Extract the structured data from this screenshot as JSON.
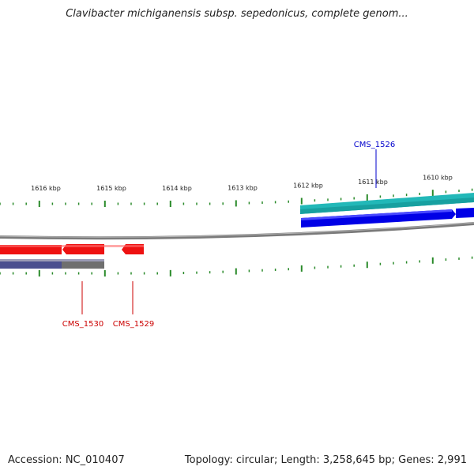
{
  "title": "Clavibacter michiganensis subsp. sepedonicus, complete genom...",
  "footer": {
    "accession": "Accession: NC_010407",
    "summary": "Topology: circular; Length: 3,258,645 bp; Genes: 2,991"
  },
  "colors": {
    "forward_cds": "#0000e6",
    "forward_gene": "#22b8b8",
    "reverse_cds": "#ee1111",
    "reverse_gene_strip": "#5b5f7e",
    "backbone": "#808080",
    "ticks": "#2a8a2a",
    "label_forward": "#0000cc",
    "label_reverse": "#cc0000"
  },
  "scale": {
    "labels": [
      "1616 kbp",
      "1615 kbp",
      "1614 kbp",
      "1613 kbp",
      "1612 kbp",
      "1611 kbp",
      "1610 kbp"
    ]
  },
  "genes": [
    {
      "name": "CMS_1526",
      "strand": "forward"
    },
    {
      "name": "CMS_1530",
      "strand": "reverse"
    },
    {
      "name": "CMS_1529",
      "strand": "reverse"
    }
  ]
}
